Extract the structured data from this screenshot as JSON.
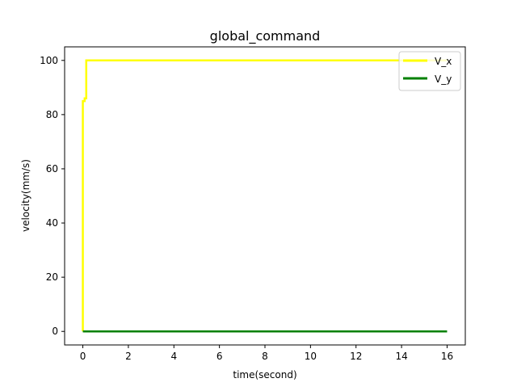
{
  "chart_data": {
    "type": "line",
    "title": "global_command",
    "xlabel": "time(second)",
    "ylabel": "velocity(mm/s)",
    "xlim": [
      -0.8,
      16.8
    ],
    "ylim": [
      -5,
      105
    ],
    "xticks": [
      0,
      2,
      4,
      6,
      8,
      10,
      12,
      14,
      16
    ],
    "yticks": [
      0,
      20,
      40,
      60,
      80,
      100
    ],
    "grid": false,
    "legend_position": "top-right",
    "series": [
      {
        "name": "V_x",
        "color": "#ffff00",
        "x": [
          0.0,
          0.0,
          0.08,
          0.08,
          0.15,
          0.15,
          16.0
        ],
        "y": [
          0,
          85,
          85,
          86,
          86,
          100,
          100
        ]
      },
      {
        "name": "V_y",
        "color": "#008000",
        "x": [
          0.0,
          16.0
        ],
        "y": [
          0,
          0
        ]
      }
    ]
  }
}
